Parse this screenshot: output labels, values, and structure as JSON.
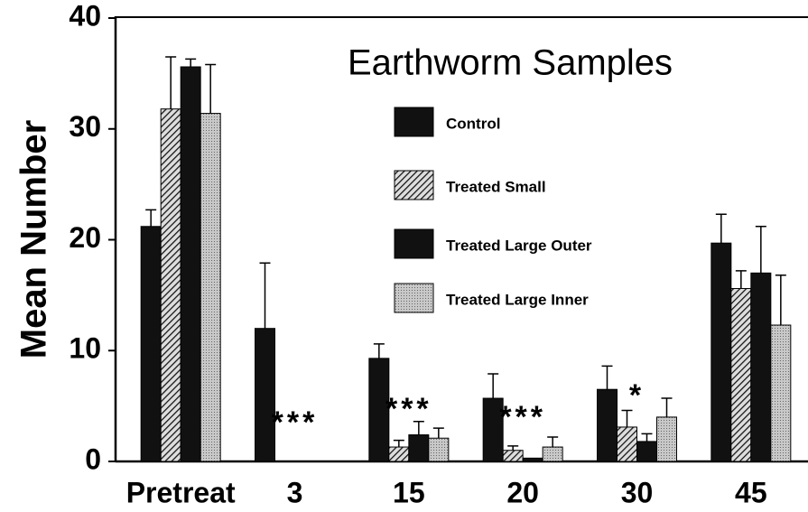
{
  "chart_data": {
    "type": "bar",
    "title": "Earthworm Samples",
    "y_label": "Mean Number",
    "categories": [
      "Pretreat",
      "3",
      "15",
      "20",
      "30",
      "45"
    ],
    "series": [
      {
        "name": "Control",
        "color": "#111111",
        "pattern": "solid",
        "values": [
          21.2,
          12.0,
          9.3,
          5.7,
          6.5,
          19.7
        ],
        "errors": [
          1.5,
          5.9,
          1.3,
          2.2,
          2.1,
          2.6
        ]
      },
      {
        "name": "Treated Small",
        "color": "#222222",
        "pattern": "diagonal",
        "values": [
          31.8,
          0,
          1.3,
          1.0,
          3.1,
          15.6
        ],
        "errors": [
          4.7,
          0,
          0.6,
          0.4,
          1.5,
          1.6
        ]
      },
      {
        "name": "Treated Large Outer",
        "color": "#111111",
        "pattern": "solid",
        "values": [
          35.6,
          0,
          2.4,
          0.3,
          1.8,
          17.0
        ],
        "errors": [
          0.7,
          0,
          1.2,
          0,
          0.7,
          4.2
        ]
      },
      {
        "name": "Treated Large Inner",
        "color": "#bbbbbb",
        "pattern": "dots",
        "values": [
          31.4,
          0,
          2.1,
          1.3,
          4.0,
          12.3
        ],
        "errors": [
          4.4,
          0,
          0.9,
          0.9,
          1.7,
          4.5
        ]
      }
    ],
    "annotations": [
      "***",
      "***",
      "***",
      "*"
    ],
    "ylim": [
      0,
      40
    ],
    "yticks": [
      0,
      10,
      20,
      30,
      40
    ],
    "grid": false,
    "legend": "upper right"
  }
}
